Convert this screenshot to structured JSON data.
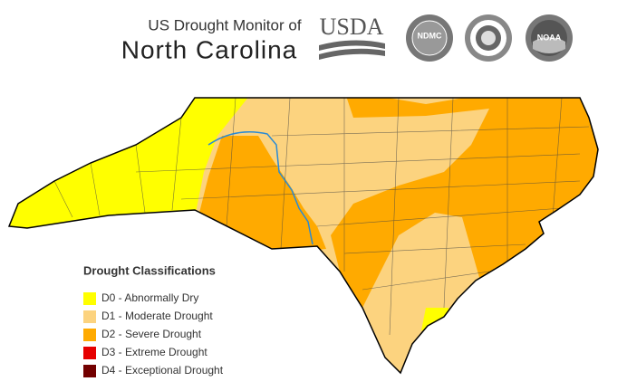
{
  "header": {
    "title_line1": "US Drought Monitor of",
    "title_line2": "North Carolina"
  },
  "logos": [
    "USDA",
    "NDMC",
    "NOAA"
  ],
  "legend": {
    "title": "Drought Classifications",
    "items": [
      {
        "label": "D0 - Abnormally Dry",
        "color": "#ffff00"
      },
      {
        "label": "D1 - Moderate Drought",
        "color": "#fcd37f"
      },
      {
        "label": "D2 - Severe Drought",
        "color": "#ffaa00"
      },
      {
        "label": "D3 - Extreme Drought",
        "color": "#e60000"
      },
      {
        "label": "D4 - Exceptional Drought",
        "color": "#730000"
      }
    ]
  }
}
